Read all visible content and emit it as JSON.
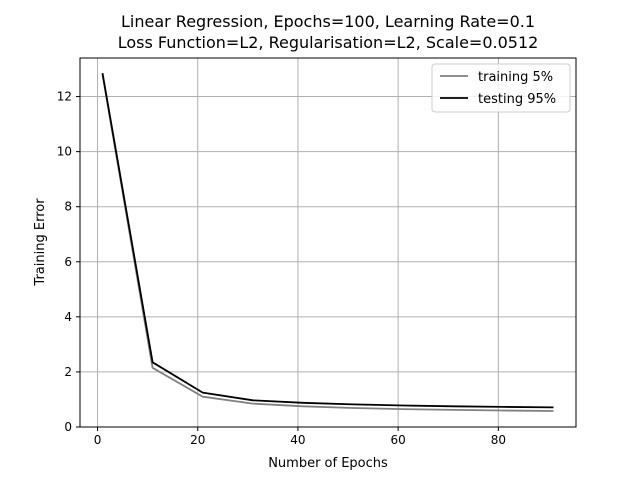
{
  "chart_data": {
    "type": "line",
    "title_line1": "Linear Regression, Epochs=100, Learning Rate=0.1",
    "title_line2": "Loss Function=L2, Regularisation=L2, Scale=0.0512",
    "xlabel": "Number of Epochs",
    "ylabel": "Training Error",
    "xlim": [
      -3.5,
      95.5
    ],
    "ylim": [
      0,
      13.4
    ],
    "xticks": [
      0,
      20,
      40,
      60,
      80
    ],
    "yticks": [
      0,
      2,
      4,
      6,
      8,
      10,
      12
    ],
    "grid": true,
    "legend_position": "top-right",
    "x": [
      1,
      11,
      21,
      31,
      41,
      51,
      61,
      71,
      81,
      91
    ],
    "series": [
      {
        "name": "training 5%",
        "color": "#808080",
        "values": [
          12.8,
          2.15,
          1.1,
          0.85,
          0.75,
          0.69,
          0.65,
          0.62,
          0.6,
          0.58
        ]
      },
      {
        "name": "testing 95%",
        "color": "#000000",
        "values": [
          12.85,
          2.35,
          1.25,
          0.97,
          0.88,
          0.82,
          0.78,
          0.75,
          0.73,
          0.71
        ]
      }
    ]
  }
}
